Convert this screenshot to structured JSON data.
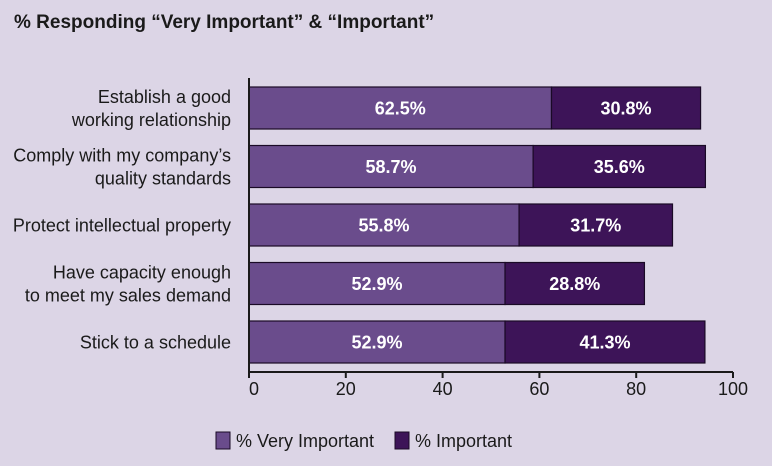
{
  "chart_data": {
    "type": "bar",
    "orientation": "horizontal",
    "stacked": true,
    "title": "% Responding “Very Important” & “Important”",
    "xlabel": "",
    "ylabel": "",
    "xlim": [
      0,
      100
    ],
    "x_ticks": [
      0,
      20,
      40,
      60,
      80,
      100
    ],
    "categories": [
      [
        "Establish a good",
        "working relationship"
      ],
      [
        "Comply with my company’s",
        "quality standards"
      ],
      [
        "Protect intellectual property"
      ],
      [
        "Have capacity enough",
        "to meet my sales demand"
      ],
      [
        "Stick to a schedule"
      ]
    ],
    "series": [
      {
        "name": "% Very Important",
        "color": "#6a4c8c",
        "values": [
          62.5,
          58.7,
          55.8,
          52.9,
          52.9
        ],
        "labels": [
          "62.5%",
          "58.7%",
          "55.8%",
          "52.9%",
          "52.9%"
        ]
      },
      {
        "name": "% Important",
        "color": "#3d1458",
        "values": [
          30.8,
          35.6,
          31.7,
          28.8,
          41.3
        ],
        "labels": [
          "30.8%",
          "35.6%",
          "31.7%",
          "28.8%",
          "41.3%"
        ]
      }
    ],
    "legend": "bottom-center",
    "grid": false
  }
}
